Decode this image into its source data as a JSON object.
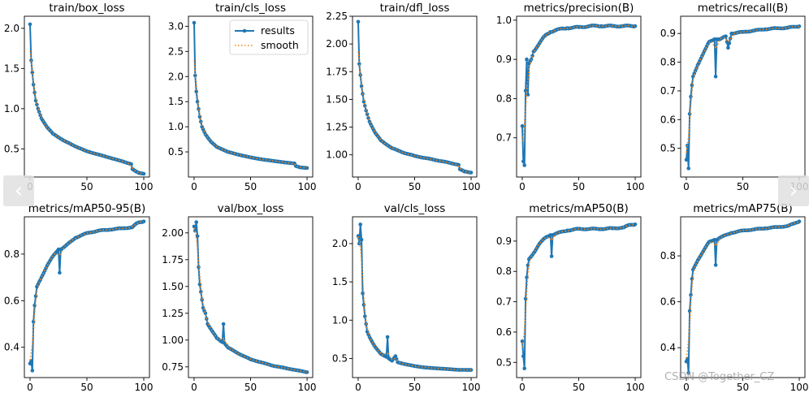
{
  "colors": {
    "results": "#1f77b4",
    "smooth": "#ff7f0e",
    "axis": "#000000",
    "background": "#ffffff"
  },
  "nav": {
    "prev_icon": "‹",
    "next_icon": "›"
  },
  "watermark": "CSDN @Together_CZ",
  "legend": {
    "results_label": "results",
    "smooth_label": "smooth"
  },
  "chart_data": [
    {
      "type": "line",
      "title": "train/box_loss",
      "ylim": [
        0.15,
        2.15
      ],
      "xlim": [
        -5,
        105
      ],
      "xticks": [
        0,
        50,
        100
      ],
      "xtick_labels": [
        "0",
        "50",
        "100"
      ],
      "yticks": [
        0.5,
        1.0,
        1.5,
        2.0
      ],
      "ytick_labels": [
        "0.5",
        "1.0",
        "1.5",
        "2.0"
      ],
      "key_points": [
        [
          0,
          2.05
        ],
        [
          1,
          1.6
        ],
        [
          2,
          1.45
        ],
        [
          3,
          1.3
        ],
        [
          4,
          1.2
        ],
        [
          5,
          1.1
        ],
        [
          7,
          1.0
        ],
        [
          10,
          0.88
        ],
        [
          15,
          0.77
        ],
        [
          20,
          0.69
        ],
        [
          30,
          0.6
        ],
        [
          40,
          0.53
        ],
        [
          50,
          0.47
        ],
        [
          60,
          0.43
        ],
        [
          70,
          0.39
        ],
        [
          80,
          0.35
        ],
        [
          89,
          0.31
        ],
        [
          90,
          0.25
        ],
        [
          93,
          0.22
        ],
        [
          96,
          0.2
        ],
        [
          100,
          0.19
        ]
      ]
    },
    {
      "type": "line",
      "title": "train/cls_loss",
      "ylim": [
        0.0,
        3.2
      ],
      "xlim": [
        -5,
        105
      ],
      "xticks": [
        0,
        50,
        100
      ],
      "xtick_labels": [
        "0",
        "50",
        "100"
      ],
      "yticks": [
        0.5,
        1.0,
        1.5,
        2.0,
        2.5,
        3.0
      ],
      "ytick_labels": [
        "0.5",
        "1.0",
        "1.5",
        "2.0",
        "2.5",
        "3.0"
      ],
      "legend": true,
      "key_points": [
        [
          0,
          3.07
        ],
        [
          1,
          2.02
        ],
        [
          2,
          1.7
        ],
        [
          3,
          1.5
        ],
        [
          5,
          1.2
        ],
        [
          7,
          1.0
        ],
        [
          10,
          0.85
        ],
        [
          15,
          0.7
        ],
        [
          20,
          0.6
        ],
        [
          30,
          0.5
        ],
        [
          40,
          0.44
        ],
        [
          50,
          0.39
        ],
        [
          60,
          0.35
        ],
        [
          70,
          0.32
        ],
        [
          80,
          0.29
        ],
        [
          89,
          0.27
        ],
        [
          90,
          0.22
        ],
        [
          94,
          0.19
        ],
        [
          100,
          0.18
        ]
      ]
    },
    {
      "type": "line",
      "title": "train/dfl_loss",
      "ylim": [
        0.8,
        2.25
      ],
      "xlim": [
        -5,
        105
      ],
      "xticks": [
        0,
        50,
        100
      ],
      "xtick_labels": [
        "0",
        "50",
        "100"
      ],
      "yticks": [
        1.0,
        1.25,
        1.5,
        1.75,
        2.0,
        2.25
      ],
      "ytick_labels": [
        "1.00",
        "1.25",
        "1.50",
        "1.75",
        "2.00",
        "2.25"
      ],
      "key_points": [
        [
          0,
          2.2
        ],
        [
          1,
          1.82
        ],
        [
          2,
          1.72
        ],
        [
          3,
          1.62
        ],
        [
          4,
          1.55
        ],
        [
          5,
          1.48
        ],
        [
          7,
          1.4
        ],
        [
          10,
          1.3
        ],
        [
          15,
          1.2
        ],
        [
          20,
          1.13
        ],
        [
          30,
          1.06
        ],
        [
          40,
          1.02
        ],
        [
          50,
          0.99
        ],
        [
          60,
          0.97
        ],
        [
          70,
          0.95
        ],
        [
          80,
          0.93
        ],
        [
          89,
          0.91
        ],
        [
          90,
          0.87
        ],
        [
          94,
          0.85
        ],
        [
          100,
          0.84
        ]
      ]
    },
    {
      "type": "line",
      "title": "metrics/precision(B)",
      "ylim": [
        0.6,
        1.01
      ],
      "xlim": [
        -5,
        105
      ],
      "xticks": [
        0,
        50,
        100
      ],
      "xtick_labels": [
        "0",
        "50",
        "100"
      ],
      "yticks": [
        0.7,
        0.8,
        0.9,
        1.0
      ],
      "ytick_labels": [
        "0.7",
        "0.8",
        "0.9",
        "1.0"
      ],
      "key_points": [
        [
          0,
          0.73
        ],
        [
          1,
          0.64
        ],
        [
          2,
          0.63
        ],
        [
          3,
          0.82
        ],
        [
          4,
          0.9
        ],
        [
          5,
          0.81
        ],
        [
          6,
          0.89
        ],
        [
          8,
          0.9
        ],
        [
          10,
          0.92
        ],
        [
          15,
          0.94
        ],
        [
          20,
          0.96
        ],
        [
          25,
          0.97
        ],
        [
          30,
          0.975
        ],
        [
          40,
          0.98
        ],
        [
          50,
          0.982
        ],
        [
          60,
          0.985
        ],
        [
          70,
          0.985
        ],
        [
          80,
          0.985
        ],
        [
          90,
          0.985
        ],
        [
          100,
          0.985
        ]
      ]
    },
    {
      "type": "line",
      "title": "metrics/recall(B)",
      "ylim": [
        0.4,
        0.96
      ],
      "xlim": [
        -5,
        105
      ],
      "xticks": [
        0,
        50,
        100
      ],
      "xtick_labels": [
        "0",
        "50",
        "100"
      ],
      "yticks": [
        0.5,
        0.6,
        0.7,
        0.8,
        0.9
      ],
      "ytick_labels": [
        "0.5",
        "0.6",
        "0.7",
        "0.8",
        "0.9"
      ],
      "key_points": [
        [
          0,
          0.46
        ],
        [
          1,
          0.51
        ],
        [
          2,
          0.43
        ],
        [
          3,
          0.62
        ],
        [
          4,
          0.68
        ],
        [
          5,
          0.72
        ],
        [
          6,
          0.75
        ],
        [
          8,
          0.77
        ],
        [
          10,
          0.79
        ],
        [
          15,
          0.83
        ],
        [
          20,
          0.87
        ],
        [
          25,
          0.88
        ],
        [
          26,
          0.75
        ],
        [
          27,
          0.88
        ],
        [
          30,
          0.88
        ],
        [
          35,
          0.89
        ],
        [
          37,
          0.85
        ],
        [
          40,
          0.9
        ],
        [
          50,
          0.905
        ],
        [
          60,
          0.91
        ],
        [
          70,
          0.915
        ],
        [
          80,
          0.918
        ],
        [
          90,
          0.92
        ],
        [
          100,
          0.925
        ]
      ]
    },
    {
      "type": "line",
      "title": "metrics/mAP50-95(B)",
      "ylim": [
        0.27,
        0.96
      ],
      "xlim": [
        -5,
        105
      ],
      "xticks": [
        0,
        50,
        100
      ],
      "xtick_labels": [
        "0",
        "50",
        "100"
      ],
      "yticks": [
        0.4,
        0.6,
        0.8
      ],
      "ytick_labels": [
        "0.4",
        "0.6",
        "0.8"
      ],
      "key_points": [
        [
          0,
          0.33
        ],
        [
          1,
          0.34
        ],
        [
          2,
          0.3
        ],
        [
          3,
          0.51
        ],
        [
          4,
          0.58
        ],
        [
          5,
          0.62
        ],
        [
          6,
          0.66
        ],
        [
          8,
          0.68
        ],
        [
          10,
          0.7
        ],
        [
          15,
          0.75
        ],
        [
          20,
          0.79
        ],
        [
          25,
          0.82
        ],
        [
          26,
          0.72
        ],
        [
          27,
          0.82
        ],
        [
          30,
          0.83
        ],
        [
          40,
          0.87
        ],
        [
          50,
          0.89
        ],
        [
          60,
          0.9
        ],
        [
          70,
          0.905
        ],
        [
          80,
          0.91
        ],
        [
          90,
          0.915
        ],
        [
          92,
          0.925
        ],
        [
          95,
          0.935
        ],
        [
          100,
          0.94
        ]
      ]
    },
    {
      "type": "line",
      "title": "val/box_loss",
      "ylim": [
        0.65,
        2.15
      ],
      "xlim": [
        -5,
        105
      ],
      "xticks": [
        0,
        50,
        100
      ],
      "xtick_labels": [
        "0",
        "50",
        "100"
      ],
      "yticks": [
        0.75,
        1.0,
        1.25,
        1.5,
        1.75,
        2.0
      ],
      "ytick_labels": [
        "0.75",
        "1.00",
        "1.25",
        "1.50",
        "1.75",
        "2.00"
      ],
      "key_points": [
        [
          0,
          2.06
        ],
        [
          1,
          2.02
        ],
        [
          2,
          2.1
        ],
        [
          3,
          1.97
        ],
        [
          4,
          1.68
        ],
        [
          5,
          1.52
        ],
        [
          6,
          1.45
        ],
        [
          8,
          1.3
        ],
        [
          10,
          1.25
        ],
        [
          12,
          1.15
        ],
        [
          15,
          1.1
        ],
        [
          20,
          1.02
        ],
        [
          25,
          0.98
        ],
        [
          26,
          1.15
        ],
        [
          27,
          0.97
        ],
        [
          30,
          0.93
        ],
        [
          40,
          0.87
        ],
        [
          50,
          0.82
        ],
        [
          60,
          0.79
        ],
        [
          70,
          0.76
        ],
        [
          80,
          0.74
        ],
        [
          90,
          0.72
        ],
        [
          100,
          0.7
        ]
      ]
    },
    {
      "type": "line",
      "title": "val/cls_loss",
      "ylim": [
        0.25,
        2.35
      ],
      "xlim": [
        -5,
        105
      ],
      "xticks": [
        0,
        50,
        100
      ],
      "xtick_labels": [
        "0",
        "50",
        "100"
      ],
      "yticks": [
        0.5,
        1.0,
        1.5,
        2.0
      ],
      "ytick_labels": [
        "0.5",
        "1.0",
        "1.5",
        "2.0"
      ],
      "key_points": [
        [
          0,
          2.1
        ],
        [
          1,
          2.0
        ],
        [
          2,
          2.25
        ],
        [
          3,
          2.05
        ],
        [
          4,
          1.35
        ],
        [
          5,
          1.2
        ],
        [
          6,
          1.05
        ],
        [
          8,
          0.85
        ],
        [
          10,
          0.78
        ],
        [
          15,
          0.65
        ],
        [
          20,
          0.56
        ],
        [
          25,
          0.52
        ],
        [
          26,
          0.78
        ],
        [
          27,
          0.5
        ],
        [
          30,
          0.47
        ],
        [
          33,
          0.53
        ],
        [
          35,
          0.45
        ],
        [
          40,
          0.43
        ],
        [
          50,
          0.4
        ],
        [
          60,
          0.38
        ],
        [
          70,
          0.37
        ],
        [
          80,
          0.36
        ],
        [
          90,
          0.35
        ],
        [
          100,
          0.35
        ]
      ]
    },
    {
      "type": "line",
      "title": "metrics/mAP50(B)",
      "ylim": [
        0.45,
        0.98
      ],
      "xlim": [
        -5,
        105
      ],
      "xticks": [
        0,
        50,
        100
      ],
      "xtick_labels": [
        "0",
        "50",
        "100"
      ],
      "yticks": [
        0.5,
        0.6,
        0.7,
        0.8,
        0.9
      ],
      "ytick_labels": [
        "0.5",
        "0.6",
        "0.7",
        "0.8",
        "0.9"
      ],
      "key_points": [
        [
          0,
          0.57
        ],
        [
          1,
          0.52
        ],
        [
          2,
          0.48
        ],
        [
          3,
          0.71
        ],
        [
          4,
          0.78
        ],
        [
          5,
          0.82
        ],
        [
          6,
          0.84
        ],
        [
          8,
          0.85
        ],
        [
          10,
          0.86
        ],
        [
          15,
          0.89
        ],
        [
          20,
          0.91
        ],
        [
          25,
          0.92
        ],
        [
          26,
          0.85
        ],
        [
          27,
          0.92
        ],
        [
          30,
          0.925
        ],
        [
          40,
          0.935
        ],
        [
          50,
          0.94
        ],
        [
          60,
          0.94
        ],
        [
          70,
          0.94
        ],
        [
          80,
          0.942
        ],
        [
          90,
          0.945
        ],
        [
          95,
          0.953
        ],
        [
          100,
          0.955
        ]
      ]
    },
    {
      "type": "line",
      "title": "metrics/mAP75(B)",
      "ylim": [
        0.27,
        0.97
      ],
      "xlim": [
        -5,
        105
      ],
      "xticks": [
        0,
        50,
        100
      ],
      "xtick_labels": [
        "0",
        "50",
        "100"
      ],
      "yticks": [
        0.4,
        0.6,
        0.8
      ],
      "ytick_labels": [
        "0.4",
        "0.6",
        "0.8"
      ],
      "key_points": [
        [
          0,
          0.34
        ],
        [
          1,
          0.35
        ],
        [
          2,
          0.29
        ],
        [
          3,
          0.56
        ],
        [
          4,
          0.63
        ],
        [
          5,
          0.7
        ],
        [
          6,
          0.74
        ],
        [
          8,
          0.76
        ],
        [
          10,
          0.78
        ],
        [
          15,
          0.82
        ],
        [
          20,
          0.86
        ],
        [
          25,
          0.87
        ],
        [
          26,
          0.76
        ],
        [
          27,
          0.87
        ],
        [
          30,
          0.88
        ],
        [
          40,
          0.9
        ],
        [
          50,
          0.91
        ],
        [
          60,
          0.915
        ],
        [
          70,
          0.92
        ],
        [
          80,
          0.925
        ],
        [
          90,
          0.93
        ],
        [
          95,
          0.94
        ],
        [
          100,
          0.95
        ]
      ]
    }
  ]
}
